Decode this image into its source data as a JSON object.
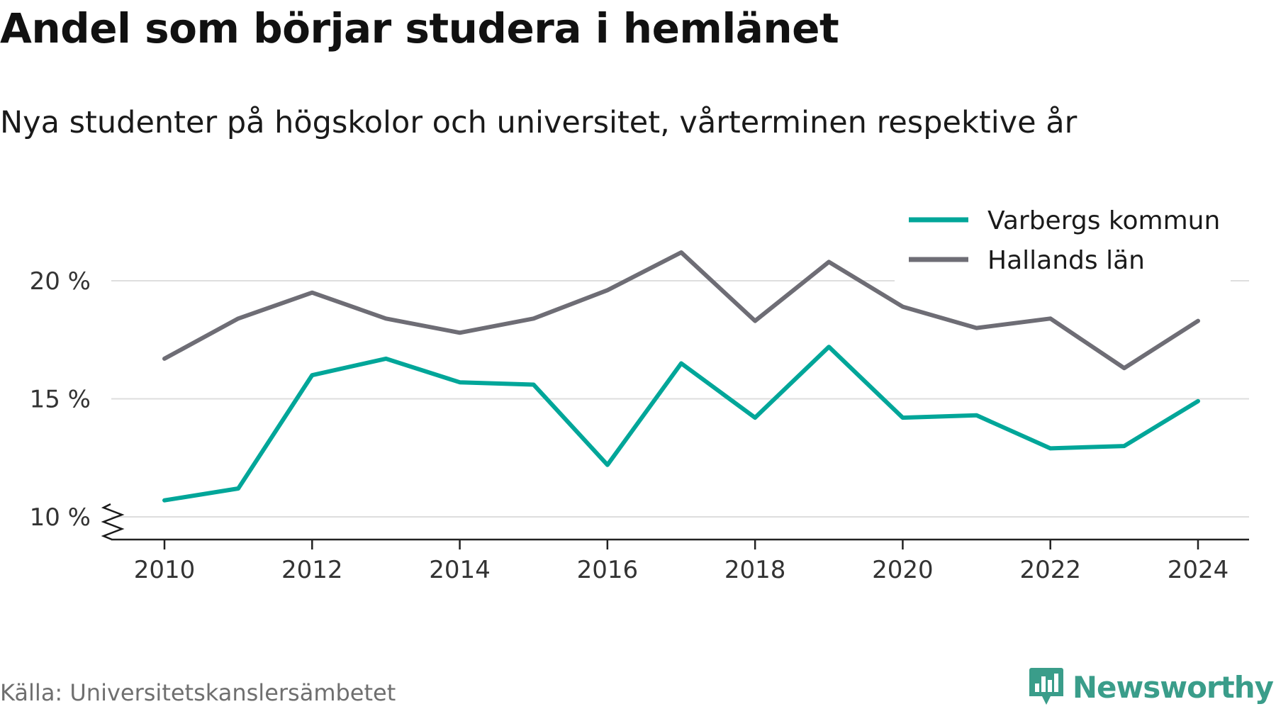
{
  "header": {
    "title": "Andel som börjar studera i hemlänet",
    "subtitle": "Nya studenter på högskolor och universitet, vårterminen respektive år"
  },
  "footer": {
    "source": "Källa: Universitetskanslersämbetet",
    "brand": "Newsworthy",
    "brand_color": "#3a9d8a"
  },
  "chart_data": {
    "type": "line",
    "title": "Andel som börjar studera i hemlänet",
    "subtitle": "Nya studenter på högskolor och universitet, vårterminen respektive år",
    "xlabel": "",
    "ylabel": "",
    "x": [
      2010,
      2011,
      2012,
      2013,
      2014,
      2015,
      2016,
      2017,
      2018,
      2019,
      2020,
      2021,
      2022,
      2023,
      2024
    ],
    "x_tick_values": [
      2010,
      2012,
      2014,
      2016,
      2018,
      2020,
      2022,
      2024
    ],
    "x_tick_labels": [
      "2010",
      "2012",
      "2014",
      "2016",
      "2018",
      "2020",
      "2022",
      "2024"
    ],
    "y_tick_values": [
      10,
      15,
      20
    ],
    "y_tick_labels": [
      "10 %",
      "15 %",
      "20 %"
    ],
    "ylim": [
      10,
      21.5
    ],
    "y_axis_break": true,
    "grid": "horizontal",
    "legend_position": "top-right",
    "series": [
      {
        "name": "Varbergs kommun",
        "color": "#00a699",
        "values": [
          10.7,
          11.2,
          16.0,
          16.7,
          15.7,
          15.6,
          12.2,
          16.5,
          14.2,
          17.2,
          14.2,
          14.3,
          12.9,
          13.0,
          14.9
        ]
      },
      {
        "name": "Hallands län",
        "color": "#6e6d75",
        "values": [
          16.7,
          18.4,
          19.5,
          18.4,
          17.8,
          18.4,
          19.6,
          21.2,
          18.3,
          20.8,
          18.9,
          18.0,
          18.4,
          16.3,
          18.3
        ]
      }
    ]
  }
}
